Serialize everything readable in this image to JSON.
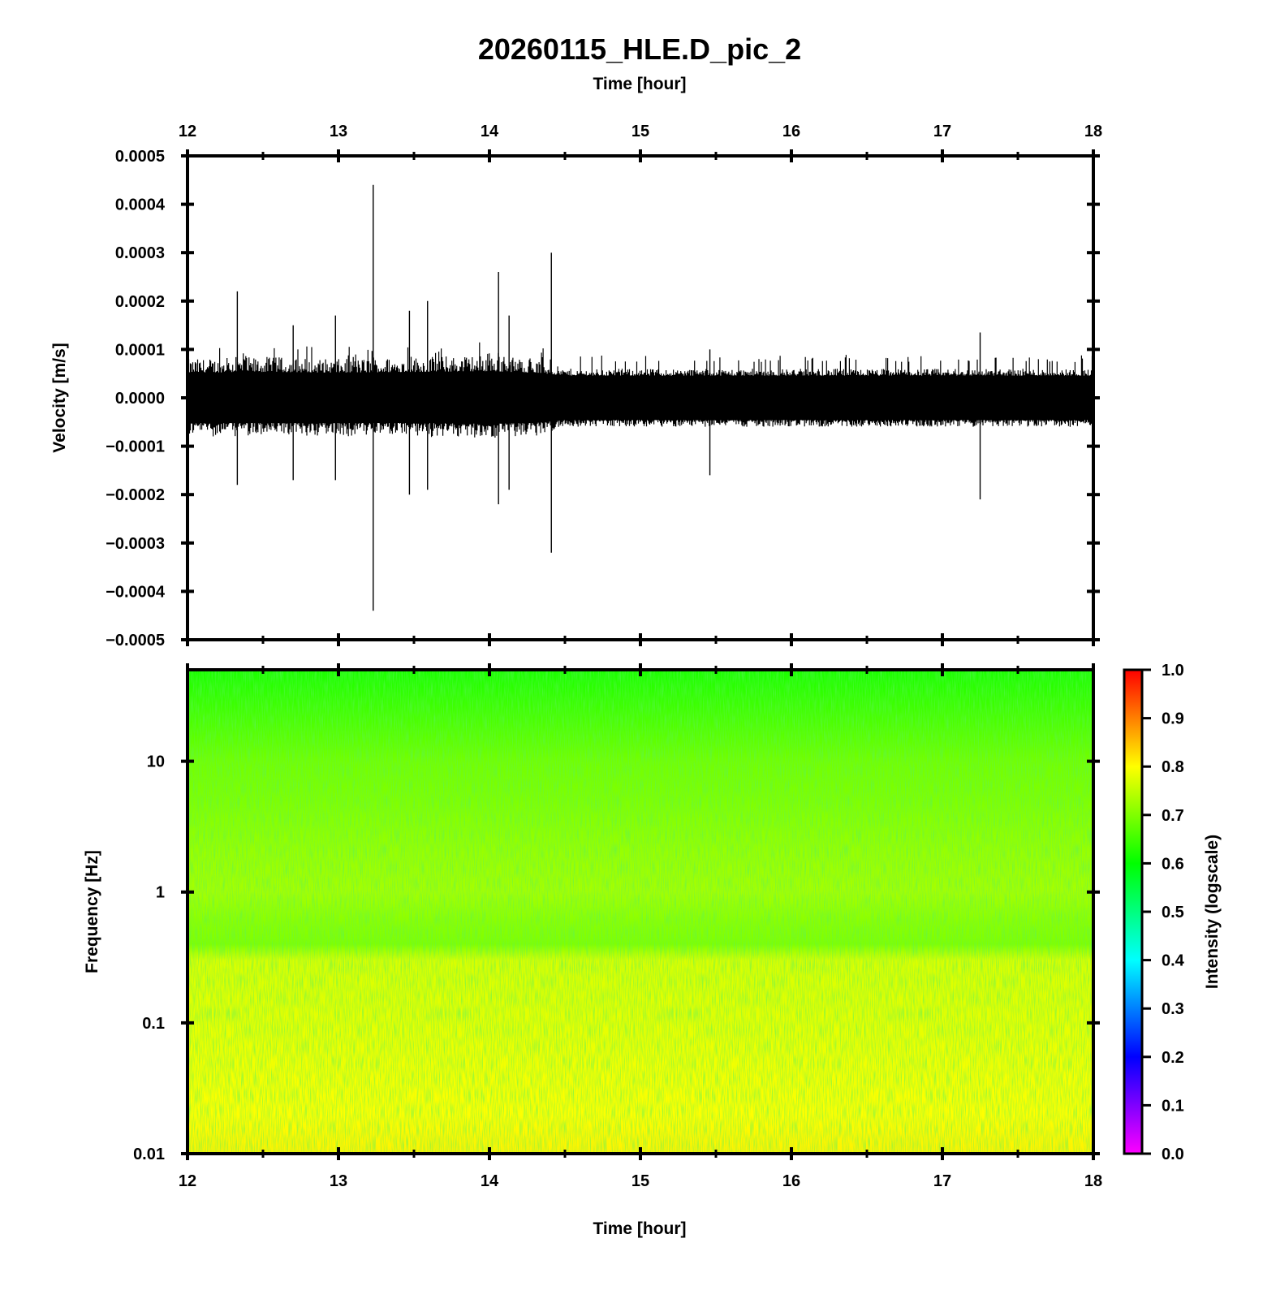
{
  "title": "20260115_HLE.D_pic_2",
  "colors": {
    "trace": "#000000",
    "frame": "#000000",
    "colormap": [
      "#ff00ff",
      "#0000ff",
      "#00ffff",
      "#00ff00",
      "#ffff00",
      "#ff0000"
    ]
  },
  "chart_data": [
    {
      "type": "line",
      "panel": "waveform",
      "top_xlabel": "Time [hour]",
      "ylabel": "Velocity [m/s]",
      "xlim": [
        12,
        18
      ],
      "ylim": [
        -0.0005,
        0.0005
      ],
      "x_ticks": [
        12,
        13,
        14,
        15,
        16,
        17,
        18
      ],
      "x_tick_labels": [
        "12",
        "13",
        "14",
        "15",
        "16",
        "17",
        "18"
      ],
      "y_ticks": [
        0.0005,
        0.0004,
        0.0003,
        0.0002,
        0.0001,
        0.0,
        -0.0001,
        -0.0002,
        -0.0003,
        -0.0004,
        -0.0005
      ],
      "y_tick_labels": [
        "0.0005",
        "0.0004",
        "0.0003",
        "0.0002",
        "0.0001",
        "0.0000",
        "−0.0001",
        "−0.0002",
        "−0.0003",
        "−0.0004",
        "−0.0005"
      ],
      "grid": false,
      "envelope": {
        "x": [
          12.0,
          12.5,
          13.0,
          13.5,
          14.0,
          14.3,
          14.5,
          15.0,
          16.0,
          17.0,
          18.0
        ],
        "upper": [
          8e-05,
          8.5e-05,
          8e-05,
          8.5e-05,
          9e-05,
          8e-05,
          6e-05,
          6e-05,
          6e-05,
          6e-05,
          6e-05
        ],
        "lower": [
          -8e-05,
          -8e-05,
          -8e-05,
          -8e-05,
          -8.5e-05,
          -8e-05,
          -6e-05,
          -6e-05,
          -6e-05,
          -6e-05,
          -6e-05
        ]
      },
      "spikes": [
        {
          "x": 12.33,
          "max": 0.00022,
          "min": -0.00018
        },
        {
          "x": 12.7,
          "max": 0.00015,
          "min": -0.00017
        },
        {
          "x": 12.98,
          "max": 0.00017,
          "min": -0.00017
        },
        {
          "x": 13.23,
          "max": 0.00044,
          "min": -0.00044
        },
        {
          "x": 13.47,
          "max": 0.00018,
          "min": -0.0002
        },
        {
          "x": 13.59,
          "max": 0.0002,
          "min": -0.00019
        },
        {
          "x": 14.06,
          "max": 0.00026,
          "min": -0.00022
        },
        {
          "x": 14.13,
          "max": 0.00017,
          "min": -0.00019
        },
        {
          "x": 14.41,
          "max": 0.0003,
          "min": -0.00032
        },
        {
          "x": 15.46,
          "max": 0.0001,
          "min": -0.00016
        },
        {
          "x": 17.25,
          "max": 0.000135,
          "min": -0.00021
        }
      ]
    },
    {
      "type": "heatmap",
      "panel": "spectrogram",
      "xlabel": "Time [hour]",
      "ylabel": "Frequency [Hz]",
      "xlim": [
        12,
        18
      ],
      "ylim": [
        0.01,
        50
      ],
      "y_scale": "log",
      "x_ticks": [
        12,
        13,
        14,
        15,
        16,
        17,
        18
      ],
      "x_tick_labels": [
        "12",
        "13",
        "14",
        "15",
        "16",
        "17",
        "18"
      ],
      "y_ticks": [
        10,
        1,
        0.1,
        0.01
      ],
      "y_tick_labels": [
        "10",
        "1",
        "0.1",
        "0.01"
      ],
      "intensity_profile": {
        "freq_hz": [
          50,
          20,
          10,
          5,
          2,
          1,
          0.6,
          0.4,
          0.3,
          0.1,
          0.05,
          0.02,
          0.01
        ],
        "intensity": [
          0.62,
          0.66,
          0.69,
          0.7,
          0.72,
          0.73,
          0.71,
          0.7,
          0.77,
          0.78,
          0.79,
          0.8,
          0.81
        ]
      },
      "colorbar": {
        "label": "Intensity (logscale)",
        "ticks": [
          1.0,
          0.9,
          0.8,
          0.7,
          0.6,
          0.5,
          0.4,
          0.3,
          0.2,
          0.1,
          0.0
        ],
        "tick_labels": [
          "1.0",
          "0.9",
          "0.8",
          "0.7",
          "0.6",
          "0.5",
          "0.4",
          "0.3",
          "0.2",
          "0.1",
          "0.0"
        ],
        "range": [
          0,
          1
        ]
      }
    }
  ]
}
